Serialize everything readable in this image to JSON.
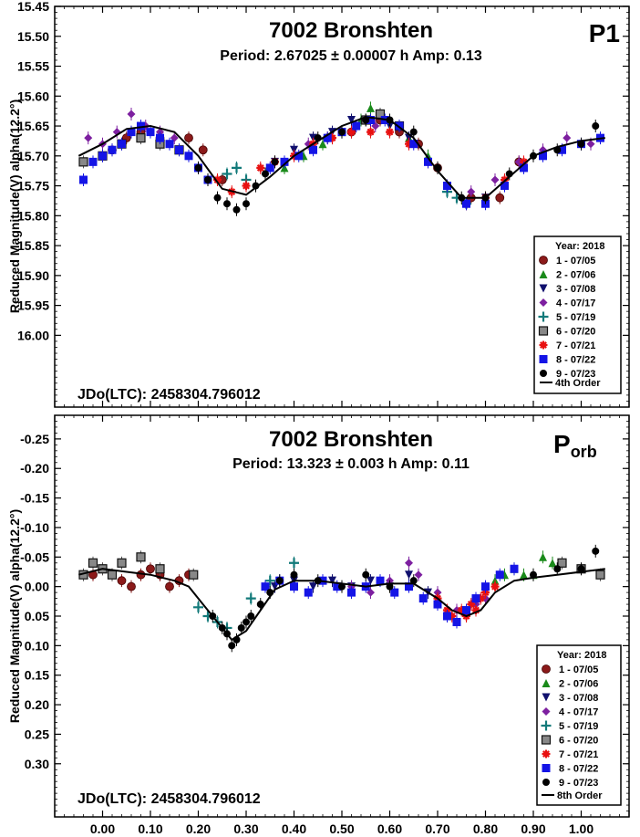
{
  "chart_data": [
    {
      "type": "scatter",
      "title": "7002 Bronshten",
      "subtitle": "Period: 2.67025 ± 0.00007 h  Amp: 0.13",
      "panel_label": "P1",
      "panel_label_sub": "",
      "ylabel": "Reduced Magnitude(V) alpha(12.2°)",
      "xlim": [
        -0.1,
        1.1
      ],
      "ylim": [
        15.45,
        16.12
      ],
      "y_inverted": true,
      "y_ticks": [
        "15.45",
        "15.50",
        "15.55",
        "15.60",
        "15.65",
        "15.70",
        "15.75",
        "15.80",
        "15.85",
        "15.90",
        "15.95",
        "16.00"
      ],
      "x_ticks": [],
      "jdo": "JDo(LTC): 2458304.796012",
      "legend": {
        "title": "Year: 2018",
        "fit_label": "4th Order",
        "position": "bottom-right"
      },
      "fit": {
        "x": [
          -0.05,
          0.0,
          0.05,
          0.1,
          0.15,
          0.2,
          0.25,
          0.3,
          0.35,
          0.4,
          0.45,
          0.5,
          0.55,
          0.6,
          0.65,
          0.7,
          0.75,
          0.8,
          0.85,
          0.9,
          0.95,
          1.0,
          1.05
        ],
        "y": [
          15.7,
          15.68,
          15.655,
          15.65,
          15.66,
          15.7,
          15.755,
          15.765,
          15.735,
          15.7,
          15.675,
          15.65,
          15.635,
          15.64,
          15.67,
          15.725,
          15.77,
          15.77,
          15.735,
          15.7,
          15.685,
          15.675,
          15.67
        ]
      },
      "series": [
        {
          "name": "1 - 07/05",
          "marker": "circle",
          "color": "#8b1a1a",
          "x": [
            0.02,
            0.05,
            0.08,
            0.12,
            0.18,
            0.21,
            0.25,
            0.47,
            0.52,
            0.58,
            0.62,
            0.66,
            0.7,
            0.77,
            0.83,
            0.87
          ],
          "y": [
            15.69,
            15.67,
            15.66,
            15.67,
            15.67,
            15.69,
            15.74,
            15.67,
            15.66,
            15.64,
            15.66,
            15.68,
            15.72,
            15.77,
            15.77,
            15.71
          ]
        },
        {
          "name": "2 - 07/06",
          "marker": "triangle-up",
          "color": "#1a8a1a",
          "x": [
            0.38,
            0.42,
            0.46,
            0.5,
            0.54,
            0.56,
            0.6,
            0.64,
            0.68
          ],
          "y": [
            15.72,
            15.7,
            15.68,
            15.66,
            15.64,
            15.62,
            15.64,
            15.67,
            15.7
          ]
        },
        {
          "name": "3 - 07/08",
          "marker": "triangle-down",
          "color": "#10106e",
          "x": [
            0.36,
            0.4,
            0.44,
            0.48,
            0.52,
            0.56,
            0.6,
            0.64,
            0.68,
            0.72,
            0.76,
            0.8
          ],
          "y": [
            15.71,
            15.69,
            15.67,
            15.66,
            15.64,
            15.64,
            15.65,
            15.67,
            15.71,
            15.75,
            15.78,
            15.77
          ]
        },
        {
          "name": "4 - 07/17",
          "marker": "diamond",
          "color": "#7d1fa0",
          "x": [
            -0.03,
            0.0,
            0.03,
            0.06,
            0.09,
            0.12,
            0.15,
            0.43,
            0.48,
            0.52,
            0.57,
            0.77,
            0.82,
            0.87,
            0.92,
            0.97,
            1.02
          ],
          "y": [
            15.67,
            15.68,
            15.66,
            15.63,
            15.65,
            15.66,
            15.67,
            15.68,
            15.67,
            15.66,
            15.65,
            15.76,
            15.74,
            15.71,
            15.69,
            15.67,
            15.68
          ]
        },
        {
          "name": "5 - 07/19",
          "marker": "plus",
          "color": "#127a7a",
          "x": [
            0.26,
            0.28,
            0.3,
            0.72,
            0.74,
            0.76
          ],
          "y": [
            15.73,
            15.72,
            15.74,
            15.76,
            15.77,
            15.78
          ]
        },
        {
          "name": "6 - 07/20",
          "marker": "square-open",
          "color": "#555555",
          "x": [
            -0.04,
            0.0,
            0.04,
            0.08,
            0.12,
            0.16,
            0.55,
            0.58,
            0.62
          ],
          "y": [
            15.71,
            15.7,
            15.68,
            15.67,
            15.68,
            15.69,
            15.64,
            15.63,
            15.65
          ]
        },
        {
          "name": "7 - 07/21",
          "marker": "asterisk",
          "color": "#e81010",
          "x": [
            0.24,
            0.27,
            0.3,
            0.33,
            0.36,
            0.4,
            0.44,
            0.48,
            0.52,
            0.56,
            0.6,
            0.64,
            0.68,
            0.72,
            0.76,
            0.8,
            0.84,
            0.88
          ],
          "y": [
            15.74,
            15.76,
            15.75,
            15.72,
            15.71,
            15.7,
            15.68,
            15.67,
            15.66,
            15.66,
            15.66,
            15.68,
            15.71,
            15.75,
            15.78,
            15.77,
            15.74,
            15.71
          ]
        },
        {
          "name": "8 - 07/22",
          "marker": "square",
          "color": "#1414e6",
          "x": [
            -0.04,
            -0.02,
            0.0,
            0.02,
            0.04,
            0.06,
            0.08,
            0.1,
            0.12,
            0.14,
            0.16,
            0.18,
            0.2,
            0.22,
            0.35,
            0.38,
            0.41,
            0.44,
            0.47,
            0.5,
            0.53,
            0.56,
            0.59,
            0.62,
            0.65,
            0.68,
            0.72,
            0.76,
            0.8,
            0.84,
            0.88,
            0.92,
            0.96,
            1.0,
            1.04
          ],
          "y": [
            15.74,
            15.71,
            15.7,
            15.69,
            15.68,
            15.66,
            15.65,
            15.66,
            15.67,
            15.68,
            15.69,
            15.7,
            15.72,
            15.74,
            15.72,
            15.71,
            15.7,
            15.69,
            15.67,
            15.66,
            15.65,
            15.64,
            15.64,
            15.65,
            15.68,
            15.71,
            15.75,
            15.78,
            15.78,
            15.75,
            15.72,
            15.7,
            15.69,
            15.68,
            15.67
          ]
        },
        {
          "name": "9 - 07/23",
          "marker": "circle-filled",
          "color": "#000000",
          "x": [
            0.2,
            0.22,
            0.24,
            0.26,
            0.28,
            0.3,
            0.32,
            0.34,
            0.36,
            0.45,
            0.5,
            0.55,
            0.6,
            0.65,
            0.7,
            0.75,
            0.8,
            0.85,
            0.9,
            0.95,
            1.0,
            1.03
          ],
          "y": [
            15.72,
            15.74,
            15.77,
            15.78,
            15.79,
            15.78,
            15.75,
            15.73,
            15.71,
            15.67,
            15.66,
            15.64,
            15.64,
            15.66,
            15.72,
            15.77,
            15.77,
            15.73,
            15.7,
            15.69,
            15.68,
            15.65
          ]
        }
      ]
    },
    {
      "type": "scatter",
      "title": "7002 Bronshten",
      "subtitle": "Period: 13.323 ± 0.003 h  Amp: 0.11",
      "panel_label": "P",
      "panel_label_sub": "orb",
      "ylabel": "Reduced Magnitude(V) alpha(12.2°)",
      "xlim": [
        -0.1,
        1.1
      ],
      "ylim": [
        -0.29,
        0.39
      ],
      "y_inverted": true,
      "y_ticks": [
        "-0.25",
        "-0.20",
        "-0.15",
        "-0.10",
        "-0.05",
        "0.00",
        "0.05",
        "0.10",
        "0.15",
        "0.20",
        "0.25",
        "0.30"
      ],
      "x_ticks": [
        "0.00",
        "0.10",
        "0.20",
        "0.30",
        "0.40",
        "0.50",
        "0.60",
        "0.70",
        "0.80",
        "0.90",
        "1.00"
      ],
      "jdo": "JDo(LTC): 2458304.796012",
      "legend": {
        "title": "Year: 2018",
        "fit_label": "8th Order",
        "position": "bottom-right"
      },
      "fit": {
        "x": [
          -0.05,
          0.0,
          0.05,
          0.1,
          0.15,
          0.18,
          0.21,
          0.24,
          0.27,
          0.3,
          0.33,
          0.36,
          0.4,
          0.45,
          0.5,
          0.55,
          0.6,
          0.65,
          0.7,
          0.73,
          0.76,
          0.79,
          0.82,
          0.86,
          0.9,
          0.95,
          1.0,
          1.05
        ],
        "y": [
          -0.02,
          -0.03,
          -0.025,
          -0.02,
          -0.01,
          0.0,
          0.03,
          0.06,
          0.09,
          0.075,
          0.04,
          0.005,
          -0.01,
          -0.01,
          -0.005,
          0.0,
          -0.005,
          -0.005,
          0.02,
          0.04,
          0.05,
          0.04,
          0.01,
          -0.01,
          -0.015,
          -0.02,
          -0.025,
          -0.03
        ]
      },
      "series": [
        {
          "name": "1 - 07/05",
          "marker": "circle",
          "color": "#8b1a1a",
          "x": [
            -0.02,
            0.0,
            0.02,
            0.04,
            0.06,
            0.08,
            0.1,
            0.12,
            0.14,
            0.16,
            0.18
          ],
          "y": [
            -0.02,
            -0.03,
            -0.02,
            -0.01,
            0.0,
            -0.02,
            -0.03,
            -0.02,
            0.0,
            -0.01,
            -0.02
          ]
        },
        {
          "name": "2 - 07/06",
          "marker": "triangle-up",
          "color": "#1a8a1a",
          "x": [
            0.82,
            0.84,
            0.86,
            0.88,
            0.9,
            0.92,
            0.94
          ],
          "y": [
            -0.01,
            -0.02,
            -0.03,
            -0.02,
            -0.02,
            -0.05,
            -0.04
          ]
        },
        {
          "name": "3 - 07/08",
          "marker": "triangle-down",
          "color": "#10106e",
          "x": [
            0.36,
            0.4,
            0.44,
            0.48,
            0.52,
            0.56,
            0.6,
            0.64,
            0.68
          ],
          "y": [
            0.0,
            -0.01,
            0.0,
            -0.01,
            0.0,
            -0.01,
            0.0,
            -0.02,
            0.01
          ]
        },
        {
          "name": "4 - 07/17",
          "marker": "diamond",
          "color": "#7d1fa0",
          "x": [
            0.52,
            0.56,
            0.6,
            0.64,
            0.66,
            0.7,
            0.74,
            0.78,
            0.8
          ],
          "y": [
            0.0,
            0.01,
            -0.01,
            -0.04,
            -0.02,
            0.01,
            0.04,
            0.03,
            0.02
          ]
        },
        {
          "name": "5 - 07/19",
          "marker": "plus",
          "color": "#127a7a",
          "x": [
            0.2,
            0.22,
            0.24,
            0.26,
            0.31,
            0.35,
            0.4
          ],
          "y": [
            0.035,
            0.05,
            0.06,
            0.07,
            0.02,
            -0.01,
            -0.04
          ]
        },
        {
          "name": "6 - 07/20",
          "marker": "square-open",
          "color": "#555555",
          "x": [
            -0.04,
            -0.02,
            0.0,
            0.02,
            0.04,
            0.08,
            0.12,
            0.19,
            0.96,
            1.0,
            1.04
          ],
          "y": [
            -0.02,
            -0.04,
            -0.03,
            -0.02,
            -0.04,
            -0.05,
            -0.03,
            -0.02,
            -0.04,
            -0.03,
            -0.02
          ]
        },
        {
          "name": "7 - 07/21",
          "marker": "asterisk",
          "color": "#e81010",
          "x": [
            0.7,
            0.72,
            0.73,
            0.74,
            0.75,
            0.76,
            0.77,
            0.78,
            0.79,
            0.8,
            0.82
          ],
          "y": [
            0.02,
            0.04,
            0.05,
            0.06,
            0.04,
            0.05,
            0.03,
            0.04,
            0.02,
            0.01,
            0.0
          ]
        },
        {
          "name": "8 - 07/22",
          "marker": "square",
          "color": "#1414e6",
          "x": [
            0.34,
            0.37,
            0.4,
            0.43,
            0.46,
            0.49,
            0.52,
            0.55,
            0.58,
            0.61,
            0.64,
            0.67,
            0.7,
            0.72,
            0.74,
            0.76,
            0.78,
            0.8,
            0.83,
            0.86
          ],
          "y": [
            0.0,
            -0.01,
            0.0,
            0.01,
            -0.01,
            0.0,
            0.01,
            0.0,
            -0.01,
            0.01,
            0.0,
            0.02,
            0.03,
            0.05,
            0.06,
            0.04,
            0.02,
            0.0,
            -0.02,
            -0.03
          ]
        },
        {
          "name": "9 - 07/23",
          "marker": "circle-filled",
          "color": "#000000",
          "x": [
            0.23,
            0.25,
            0.26,
            0.27,
            0.28,
            0.29,
            0.3,
            0.31,
            0.33,
            0.35,
            0.37,
            0.4,
            0.45,
            0.5,
            0.55,
            0.6,
            0.65,
            0.9,
            0.95,
            1.0,
            1.03
          ],
          "y": [
            0.05,
            0.07,
            0.08,
            0.1,
            0.09,
            0.07,
            0.06,
            0.05,
            0.03,
            0.01,
            -0.01,
            -0.02,
            -0.01,
            0.0,
            -0.02,
            0.0,
            -0.01,
            -0.02,
            -0.03,
            -0.03,
            -0.06
          ]
        }
      ]
    }
  ]
}
